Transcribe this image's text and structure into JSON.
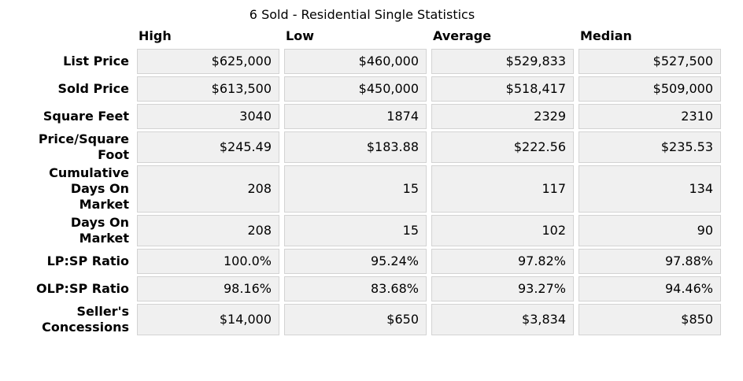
{
  "chart_data": {
    "type": "table",
    "title": "6 Sold - Residential Single Statistics",
    "columns": [
      "High",
      "Low",
      "Average",
      "Median"
    ],
    "rows": [
      {
        "label": "List Price",
        "values": [
          "$625,000",
          "$460,000",
          "$529,833",
          "$527,500"
        ]
      },
      {
        "label": "Sold Price",
        "values": [
          "$613,500",
          "$450,000",
          "$518,417",
          "$509,000"
        ]
      },
      {
        "label": "Square Feet",
        "values": [
          "3040",
          "1874",
          "2329",
          "2310"
        ]
      },
      {
        "label": "Price/Square\nFoot",
        "values": [
          "$245.49",
          "$183.88",
          "$222.56",
          "$235.53"
        ]
      },
      {
        "label": "Cumulative\nDays On\nMarket",
        "values": [
          "208",
          "15",
          "117",
          "134"
        ]
      },
      {
        "label": "Days On\nMarket",
        "values": [
          "208",
          "15",
          "102",
          "90"
        ]
      },
      {
        "label": "LP:SP Ratio",
        "values": [
          "100.0%",
          "95.24%",
          "97.82%",
          "97.88%"
        ]
      },
      {
        "label": "OLP:SP Ratio",
        "values": [
          "98.16%",
          "83.68%",
          "93.27%",
          "94.46%"
        ]
      },
      {
        "label": "Seller's\nConcessions",
        "values": [
          "$14,000",
          "$650",
          "$3,834",
          "$850"
        ]
      }
    ]
  },
  "colors": {
    "cell_background": "#f0f0f0",
    "cell_border": "#d3d3d3",
    "text": "#000000",
    "page_background": "#ffffff"
  }
}
